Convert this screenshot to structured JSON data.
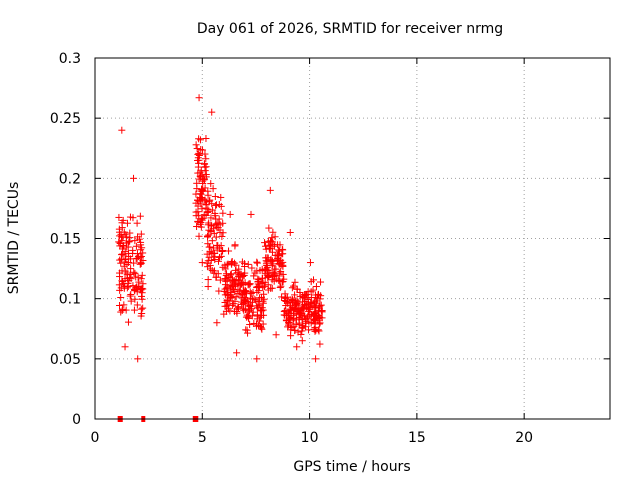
{
  "chart_data": {
    "type": "scatter",
    "title": "Day 061 of 2026, SRMTID for receiver nrmg",
    "xlabel": "GPS time / hours",
    "ylabel": "SRMTID / TECUs",
    "xlim": [
      0,
      24
    ],
    "ylim": [
      0,
      0.3
    ],
    "xticks": [
      0,
      5,
      10,
      15,
      20
    ],
    "yticks": [
      0,
      0.05,
      0.1,
      0.15,
      0.2,
      0.25,
      0.3
    ],
    "xtick_labels": [
      "0",
      "5",
      "10",
      "15",
      "20"
    ],
    "ytick_labels": [
      "0",
      "0.05",
      "0.1",
      "0.15",
      "0.2",
      "0.25",
      "0.3"
    ],
    "grid": true,
    "marker": "+",
    "color": "#ff0000",
    "zero_markers_x": [
      1.15,
      1.2,
      2.25,
      4.65,
      4.72
    ],
    "clusters": [
      {
        "t_start": 1.1,
        "t_end": 1.6,
        "y_center": 0.13,
        "y_spread": 0.04,
        "n": 70,
        "y_min": 0.06,
        "y_max": 0.24
      },
      {
        "t_start": 1.6,
        "t_end": 2.25,
        "y_center": 0.12,
        "y_spread": 0.04,
        "n": 70,
        "y_min": 0.05,
        "y_max": 0.2
      },
      {
        "t_start": 4.7,
        "t_end": 5.2,
        "y_center": 0.19,
        "y_spread": 0.04,
        "n": 80,
        "y_min": 0.13,
        "y_max": 0.267
      },
      {
        "t_start": 5.2,
        "t_end": 6.0,
        "y_center": 0.15,
        "y_spread": 0.04,
        "n": 90,
        "y_min": 0.08,
        "y_max": 0.255
      },
      {
        "t_start": 6.0,
        "t_end": 7.0,
        "y_center": 0.11,
        "y_spread": 0.025,
        "n": 120,
        "y_min": 0.055,
        "y_max": 0.17
      },
      {
        "t_start": 7.0,
        "t_end": 7.9,
        "y_center": 0.1,
        "y_spread": 0.025,
        "n": 100,
        "y_min": 0.05,
        "y_max": 0.17
      },
      {
        "t_start": 7.9,
        "t_end": 8.8,
        "y_center": 0.13,
        "y_spread": 0.025,
        "n": 100,
        "y_min": 0.07,
        "y_max": 0.19
      },
      {
        "t_start": 8.8,
        "t_end": 9.8,
        "y_center": 0.09,
        "y_spread": 0.02,
        "n": 110,
        "y_min": 0.06,
        "y_max": 0.155
      },
      {
        "t_start": 9.8,
        "t_end": 10.6,
        "y_center": 0.09,
        "y_spread": 0.02,
        "n": 90,
        "y_min": 0.05,
        "y_max": 0.13
      }
    ]
  }
}
